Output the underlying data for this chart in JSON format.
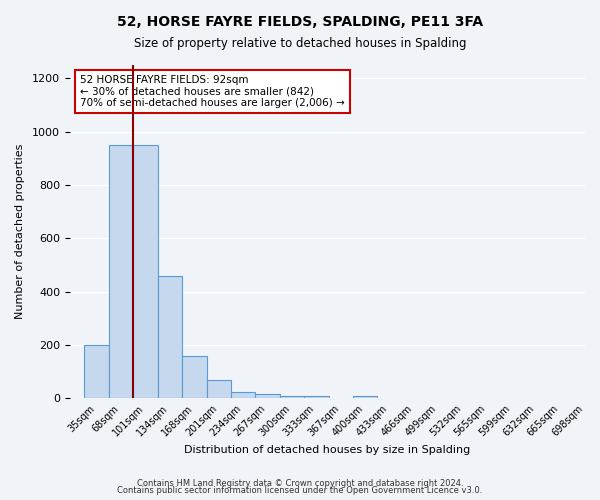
{
  "title": "52, HORSE FAYRE FIELDS, SPALDING, PE11 3FA",
  "subtitle": "Size of property relative to detached houses in Spalding",
  "xlabel": "Distribution of detached houses by size in Spalding",
  "ylabel": "Number of detached properties",
  "bar_values": [
    200,
    950,
    950,
    460,
    160,
    70,
    22,
    15,
    10,
    10,
    0,
    10,
    0,
    0,
    0,
    0,
    0,
    0,
    0,
    0,
    0
  ],
  "bin_labels": [
    "35sqm",
    "68sqm",
    "101sqm",
    "134sqm",
    "168sqm",
    "201sqm",
    "234sqm",
    "267sqm",
    "300sqm",
    "333sqm",
    "367sqm",
    "400sqm",
    "433sqm",
    "466sqm",
    "499sqm",
    "532sqm",
    "565sqm",
    "599sqm",
    "632sqm",
    "665sqm",
    "698sqm"
  ],
  "bar_color": "#c5d8ed",
  "bar_edge_color": "#5b9bd5",
  "red_line_index": 2,
  "red_line_color": "#8b0000",
  "annotation_text": "52 HORSE FAYRE FIELDS: 92sqm\n← 30% of detached houses are smaller (842)\n70% of semi-detached houses are larger (2,006) →",
  "annotation_box_color": "#ffffff",
  "annotation_box_edge_color": "#cc0000",
  "ylim": [
    0,
    1250
  ],
  "yticks": [
    0,
    200,
    400,
    600,
    800,
    1000,
    1200
  ],
  "footer_line1": "Contains HM Land Registry data © Crown copyright and database right 2024.",
  "footer_line2": "Contains public sector information licensed under the Open Government Licence v3.0.",
  "background_color": "#f0f4f8",
  "grid_color": "#ffffff"
}
